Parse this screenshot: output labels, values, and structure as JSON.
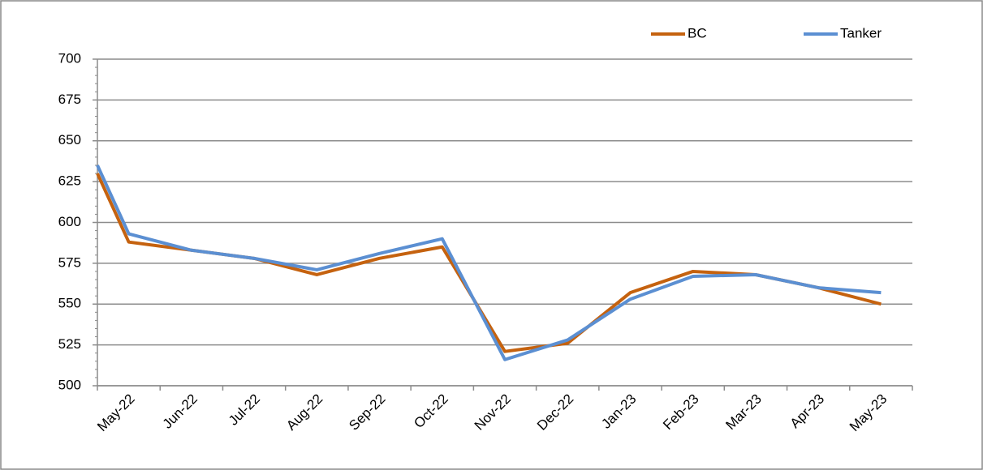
{
  "chart_data": {
    "type": "line",
    "categories": [
      null,
      "May-22",
      "Jun-22",
      "Jul-22",
      "Aug-22",
      "Sep-22",
      "Oct-22",
      "Nov-22",
      "Dec-22",
      "Jan-23",
      "Feb-23",
      "Mar-23",
      "Apr-23",
      "May-23"
    ],
    "series": [
      {
        "name": "BC",
        "color": "#c5620f",
        "values": [
          630,
          588,
          583,
          578,
          568,
          578,
          585,
          521,
          526,
          557,
          570,
          568,
          560,
          550
        ]
      },
      {
        "name": "Tanker",
        "color": "#5b8fd2",
        "values": [
          635,
          593,
          583,
          578,
          571,
          581,
          590,
          516,
          528,
          553,
          567,
          568,
          560,
          557
        ]
      }
    ],
    "ylim": [
      500,
      700
    ],
    "yticks": [
      500,
      525,
      550,
      575,
      600,
      625,
      650,
      675,
      700
    ],
    "grid": true,
    "legend": "top-right"
  }
}
